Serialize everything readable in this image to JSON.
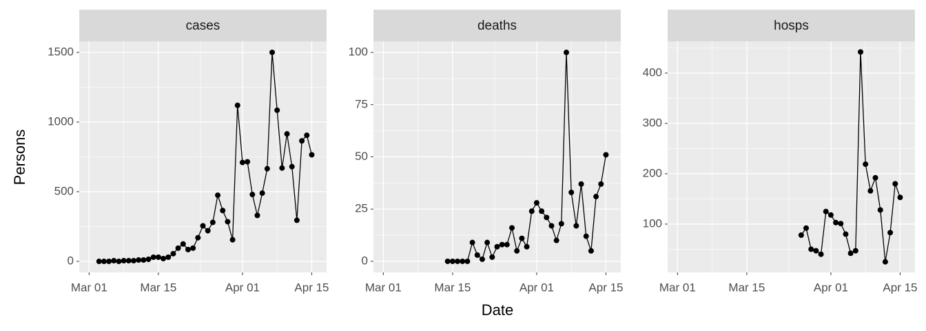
{
  "chart_data": [
    {
      "type": "line",
      "title": "cases",
      "ylabel": "Persons",
      "color": "#000000",
      "x": [
        "Mar 03",
        "Mar 04",
        "Mar 05",
        "Mar 06",
        "Mar 07",
        "Mar 08",
        "Mar 09",
        "Mar 10",
        "Mar 11",
        "Mar 12",
        "Mar 13",
        "Mar 14",
        "Mar 15",
        "Mar 16",
        "Mar 17",
        "Mar 18",
        "Mar 19",
        "Mar 20",
        "Mar 21",
        "Mar 22",
        "Mar 23",
        "Mar 24",
        "Mar 25",
        "Mar 26",
        "Mar 27",
        "Mar 28",
        "Mar 29",
        "Mar 30",
        "Mar 31",
        "Apr 01",
        "Apr 02",
        "Apr 03",
        "Apr 04",
        "Apr 05",
        "Apr 06",
        "Apr 07",
        "Apr 08",
        "Apr 09",
        "Apr 10",
        "Apr 11",
        "Apr 12",
        "Apr 13",
        "Apr 14",
        "Apr 15"
      ],
      "values": [
        0,
        0,
        0,
        5,
        0,
        5,
        5,
        5,
        10,
        10,
        15,
        30,
        30,
        20,
        30,
        55,
        95,
        125,
        85,
        95,
        170,
        255,
        220,
        280,
        475,
        365,
        285,
        155,
        1120,
        710,
        715,
        480,
        330,
        490,
        665,
        1500,
        1085,
        670,
        915,
        680,
        295,
        865,
        905,
        765
      ],
      "xlim": [
        "Feb 28",
        "Apr 18"
      ],
      "xticks": [
        "Mar 01",
        "Mar 15",
        "Apr 01",
        "Apr 15"
      ],
      "ylim": [
        -79,
        1579
      ],
      "yticks": [
        0,
        500,
        1000,
        1500
      ],
      "grid": true
    },
    {
      "type": "line",
      "title": "deaths",
      "xlabel": "Date",
      "color": "#000000",
      "x": [
        "Mar 14",
        "Mar 15",
        "Mar 16",
        "Mar 17",
        "Mar 18",
        "Mar 19",
        "Mar 20",
        "Mar 21",
        "Mar 22",
        "Mar 23",
        "Mar 24",
        "Mar 25",
        "Mar 26",
        "Mar 27",
        "Mar 28",
        "Mar 29",
        "Mar 30",
        "Mar 31",
        "Apr 01",
        "Apr 02",
        "Apr 03",
        "Apr 04",
        "Apr 05",
        "Apr 06",
        "Apr 07",
        "Apr 08",
        "Apr 09",
        "Apr 10",
        "Apr 11",
        "Apr 12",
        "Apr 13",
        "Apr 14",
        "Apr 15"
      ],
      "values": [
        0,
        0,
        0,
        0,
        0,
        9,
        3,
        1,
        9,
        2,
        7,
        8,
        8,
        16,
        5,
        11,
        7,
        24,
        28,
        24,
        21,
        17,
        10,
        18,
        100,
        33,
        17,
        37,
        12,
        5,
        31,
        37,
        51
      ],
      "xlim": [
        "Feb 28",
        "Apr 18"
      ],
      "xticks": [
        "Mar 01",
        "Mar 15",
        "Apr 01",
        "Apr 15"
      ],
      "ylim": [
        -5.3,
        105.3
      ],
      "yticks": [
        0,
        25,
        50,
        75,
        100
      ],
      "grid": true
    },
    {
      "type": "line",
      "title": "hosps",
      "color": "#000000",
      "x": [
        "Mar 26",
        "Mar 27",
        "Mar 28",
        "Mar 29",
        "Mar 30",
        "Mar 31",
        "Apr 01",
        "Apr 02",
        "Apr 03",
        "Apr 04",
        "Apr 05",
        "Apr 06",
        "Apr 07",
        "Apr 08",
        "Apr 09",
        "Apr 10",
        "Apr 11",
        "Apr 12",
        "Apr 13",
        "Apr 14",
        "Apr 15"
      ],
      "values": [
        78,
        92,
        50,
        47,
        40,
        125,
        118,
        103,
        101,
        80,
        42,
        47,
        442,
        219,
        166,
        192,
        128,
        25,
        83,
        180,
        153
      ],
      "xlim": [
        "Feb 28",
        "Apr 18"
      ],
      "xticks": [
        "Mar 01",
        "Mar 15",
        "Apr 01",
        "Apr 15"
      ],
      "ylim": [
        4,
        463
      ],
      "yticks": [
        100,
        200,
        300,
        400
      ],
      "grid": true
    }
  ]
}
